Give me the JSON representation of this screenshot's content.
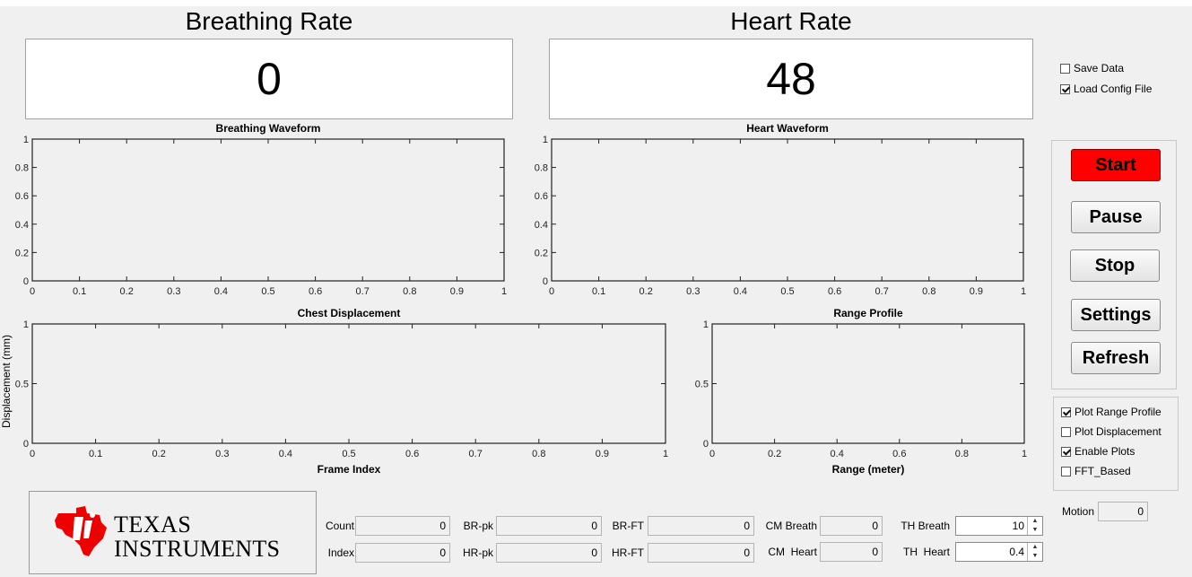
{
  "breathing": {
    "title": "Breathing Rate",
    "value": "0"
  },
  "heart": {
    "title": "Heart Rate",
    "value": "48"
  },
  "options_top": [
    {
      "label": "Save Data",
      "checked": false
    },
    {
      "label": "Load Config File",
      "checked": true
    }
  ],
  "buttons": {
    "start": "Start",
    "pause": "Pause",
    "stop": "Stop",
    "settings": "Settings",
    "refresh": "Refresh"
  },
  "options_plot": [
    {
      "label": "Plot Range Profile",
      "checked": true
    },
    {
      "label": "Plot Displacement",
      "checked": false
    },
    {
      "label": "Enable Plots",
      "checked": true
    },
    {
      "label": "FFT_Based",
      "checked": false
    }
  ],
  "chart_data": [
    {
      "type": "line",
      "title": "Breathing Waveform",
      "xlabel": "",
      "ylabel": "",
      "xlim": [
        0,
        1
      ],
      "ylim": [
        0,
        1
      ],
      "xticks": [
        "0",
        "0.1",
        "0.2",
        "0.3",
        "0.4",
        "0.5",
        "0.6",
        "0.7",
        "0.8",
        "0.9",
        "1"
      ],
      "yticks": [
        "0",
        "0.2",
        "0.4",
        "0.6",
        "0.8",
        "1"
      ],
      "series": []
    },
    {
      "type": "line",
      "title": "Heart Waveform",
      "xlabel": "",
      "ylabel": "",
      "xlim": [
        0,
        1
      ],
      "ylim": [
        0,
        1
      ],
      "xticks": [
        "0",
        "0.1",
        "0.2",
        "0.3",
        "0.4",
        "0.5",
        "0.6",
        "0.7",
        "0.8",
        "0.9",
        "1"
      ],
      "yticks": [
        "0",
        "0.2",
        "0.4",
        "0.6",
        "0.8",
        "1"
      ],
      "series": []
    },
    {
      "type": "line",
      "title": "Chest Displacement",
      "xlabel": "Frame Index",
      "ylabel": "Displacement (mm)",
      "xlim": [
        0,
        1
      ],
      "ylim": [
        0,
        1
      ],
      "xticks": [
        "0",
        "0.1",
        "0.2",
        "0.3",
        "0.4",
        "0.5",
        "0.6",
        "0.7",
        "0.8",
        "0.9",
        "1"
      ],
      "yticks": [
        "0",
        "0.5",
        "1"
      ],
      "series": []
    },
    {
      "type": "line",
      "title": "Range Profile",
      "xlabel": "Range (meter)",
      "ylabel": "",
      "xlim": [
        0,
        1
      ],
      "ylim": [
        0,
        1
      ],
      "xticks": [
        "0",
        "0.2",
        "0.4",
        "0.6",
        "0.8",
        "1"
      ],
      "yticks": [
        "0",
        "0.5",
        "1"
      ],
      "series": []
    }
  ],
  "logo": {
    "line1": "TEXAS",
    "line2": "INSTRUMENTS",
    "color": "#ee0000"
  },
  "fields": {
    "count": {
      "label": "Count",
      "value": "0"
    },
    "index": {
      "label": "Index",
      "value": "0"
    },
    "br_pk": {
      "label": "BR-pk",
      "value": "0"
    },
    "hr_pk": {
      "label": "HR-pk",
      "value": "0"
    },
    "br_ft": {
      "label": "BR-FT",
      "value": "0"
    },
    "hr_ft": {
      "label": "HR-FT",
      "value": "0"
    },
    "cm_breath": {
      "label": "CM Breath",
      "value": "0"
    },
    "cm_heart": {
      "label": "CM  Heart",
      "value": "0"
    },
    "th_breath": {
      "label": "TH Breath",
      "value": "10"
    },
    "th_heart": {
      "label": "TH  Heart",
      "value": "0.4"
    },
    "motion": {
      "label": "Motion",
      "value": "0"
    }
  },
  "colors": {
    "start_button": "#ff0000",
    "background": "#f0f0f0"
  }
}
